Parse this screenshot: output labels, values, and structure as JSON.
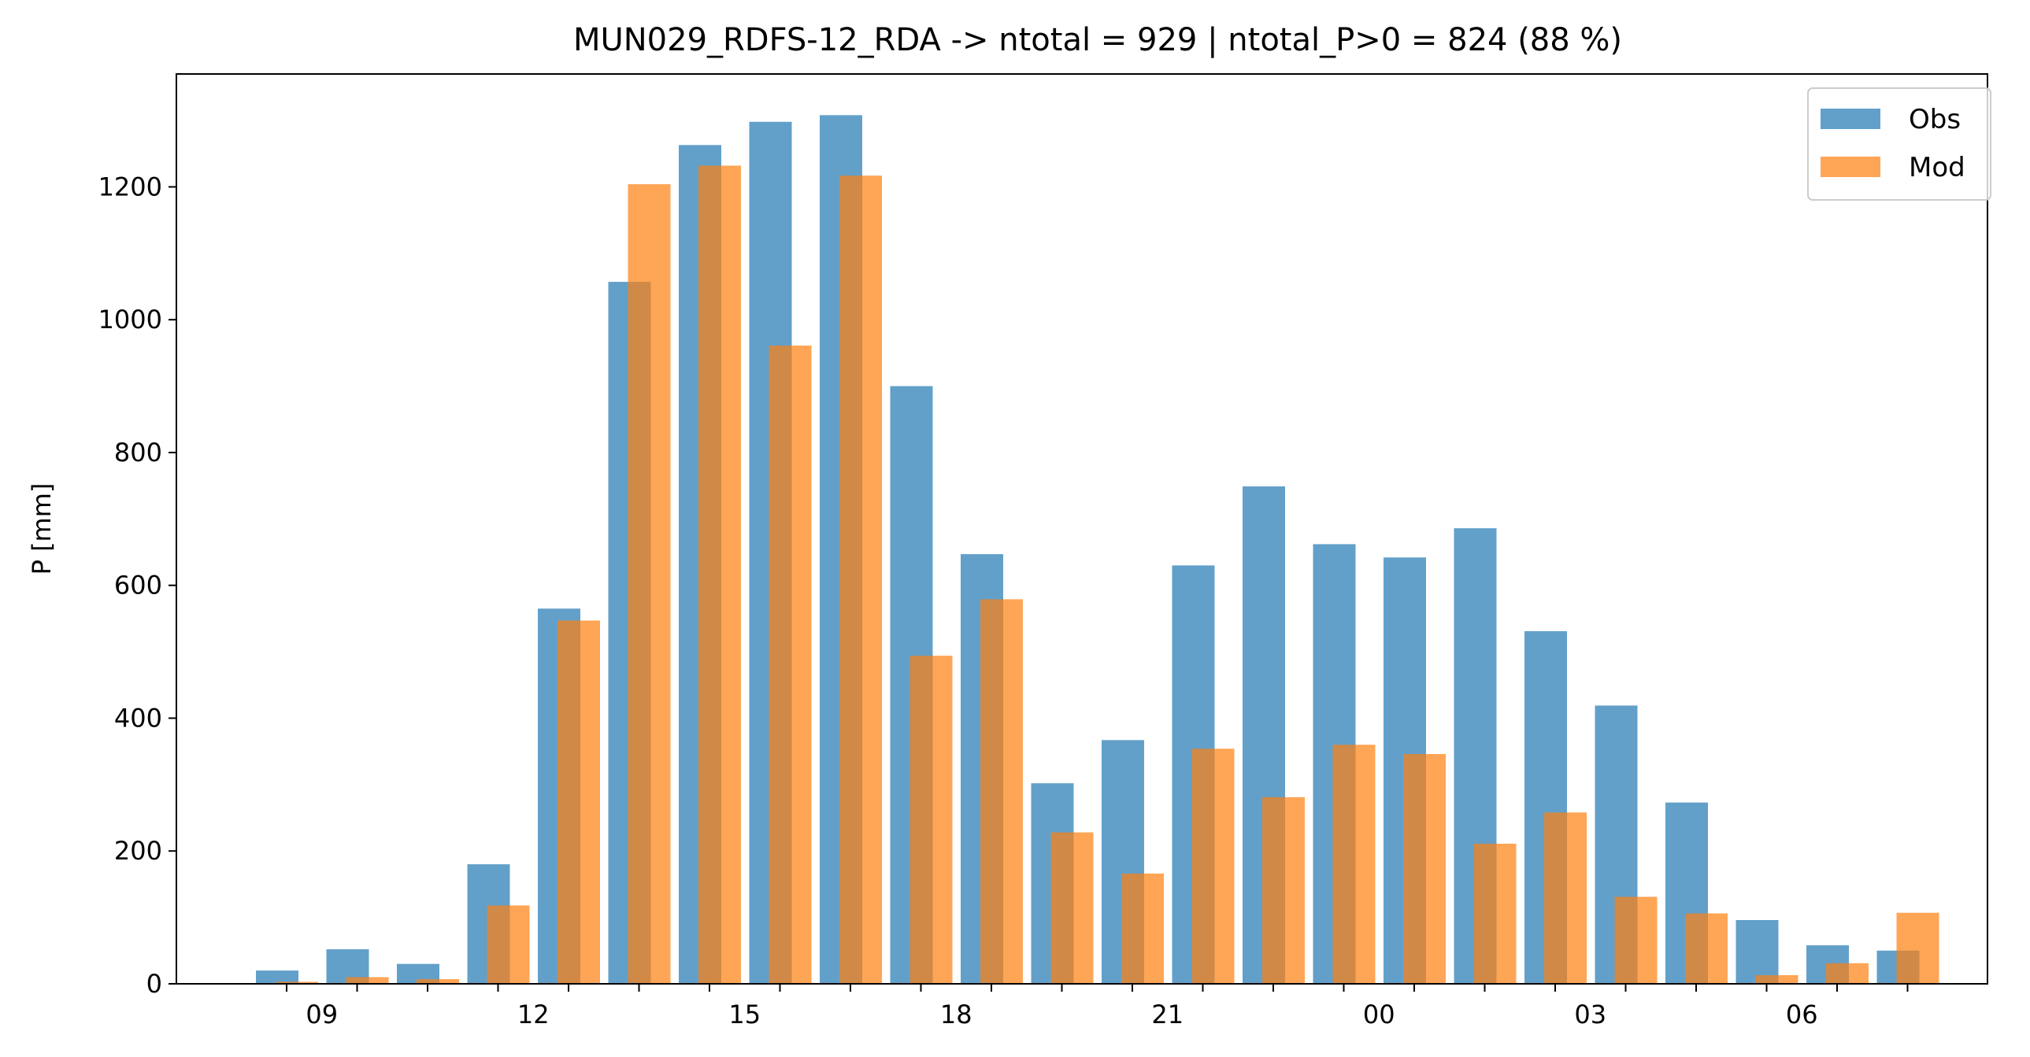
{
  "chart_data": {
    "type": "bar",
    "title": "MUN029_RDFS-12_RDA -> ntotal = 929 | ntotal_P>0 = 824 (88 %)",
    "xlabel": "",
    "ylabel": "P [mm]",
    "ylim": [
      0,
      1370
    ],
    "yticks": [
      0,
      200,
      400,
      600,
      800,
      1000,
      1200
    ],
    "x_hours": [
      8,
      9,
      10,
      11,
      12,
      13,
      14,
      15,
      16,
      17,
      18,
      19,
      20,
      21,
      22,
      23,
      0,
      1,
      2,
      3,
      4,
      5,
      6,
      7
    ],
    "xtick_labels": [
      {
        "hour": 9,
        "label": "09"
      },
      {
        "hour": 12,
        "label": "12"
      },
      {
        "hour": 15,
        "label": "15"
      },
      {
        "hour": 18,
        "label": "18"
      },
      {
        "hour": 21,
        "label": "21"
      },
      {
        "hour": 0,
        "label": "00"
      },
      {
        "hour": 3,
        "label": "03"
      },
      {
        "hour": 6,
        "label": "06"
      }
    ],
    "grid": false,
    "legend_position": "top-right",
    "series": [
      {
        "name": "Obs",
        "color": "#1f77b4",
        "values": [
          20,
          52,
          30,
          180,
          565,
          1057,
          1263,
          1298,
          1308,
          900,
          647,
          302,
          367,
          630,
          749,
          662,
          642,
          686,
          531,
          419,
          273,
          96,
          58,
          50
        ]
      },
      {
        "name": "Mod",
        "color": "#ff7f0e",
        "values": [
          3,
          10,
          7,
          118,
          547,
          1204,
          1232,
          961,
          1217,
          494,
          579,
          228,
          166,
          354,
          281,
          360,
          346,
          211,
          258,
          131,
          106,
          13,
          31,
          107
        ]
      }
    ]
  }
}
